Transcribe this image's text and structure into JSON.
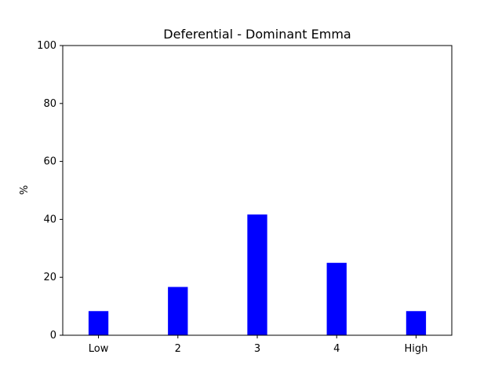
{
  "chart_data": {
    "type": "bar",
    "title": "Deferential - Dominant Emma",
    "xlabel": "",
    "ylabel": "%",
    "categories": [
      "Low",
      "2",
      "3",
      "4",
      "High"
    ],
    "values": [
      8.33,
      16.67,
      41.67,
      25.0,
      8.33
    ],
    "ylim": [
      0,
      100
    ],
    "yticks": [
      0,
      20,
      40,
      60,
      80,
      100
    ],
    "bar_color": "#0000ff",
    "grid": false,
    "legend": false
  }
}
